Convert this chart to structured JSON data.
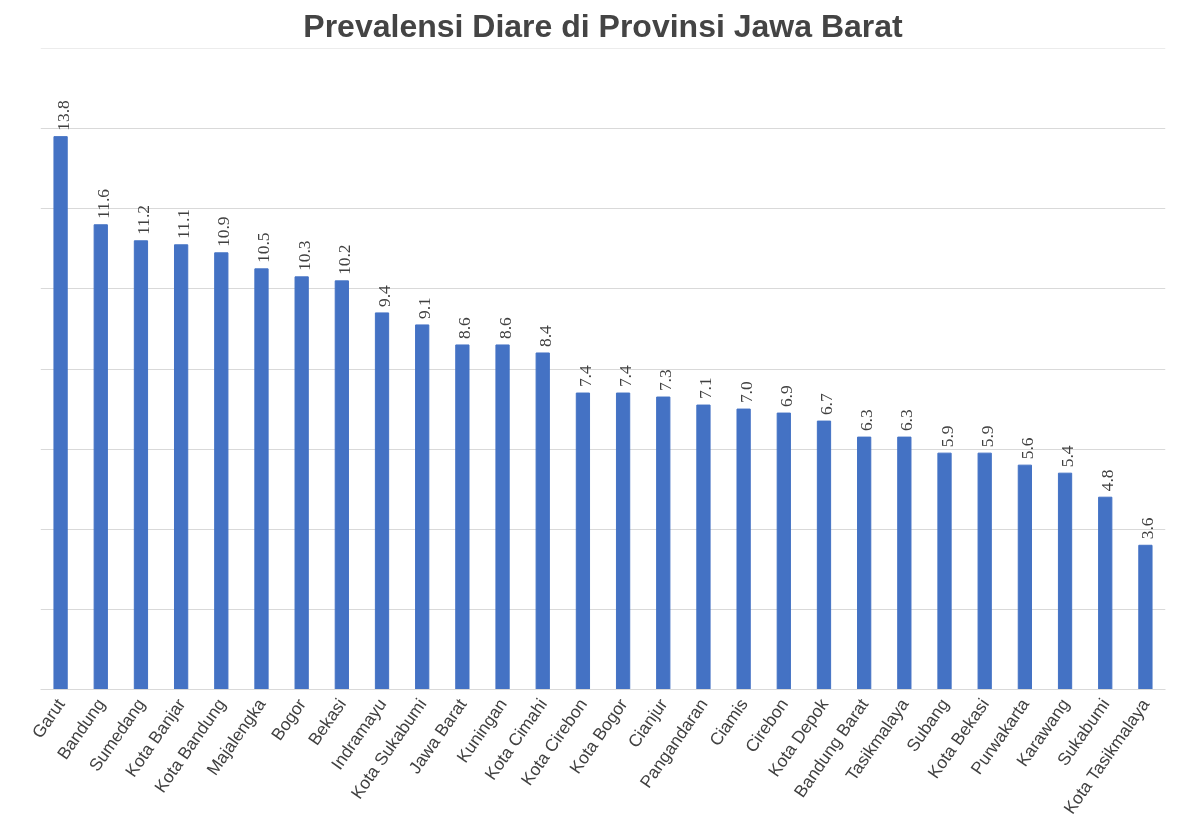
{
  "chart_data": {
    "type": "bar",
    "title": "Prevalensi Diare di Provinsi Jawa Barat",
    "categories": [
      "Garut",
      "Bandung",
      "Sumedang",
      "Kota Banjar",
      "Kota Bandung",
      "Majalengka",
      "Bogor",
      "Bekasi",
      "Indramayu",
      "Kota Sukabumi",
      "Jawa Barat",
      "Kuningan",
      "Kota Cimahi",
      "Kota Cirebon",
      "Kota Bogor",
      "Cianjur",
      "Pangandaran",
      "Ciamis",
      "Cirebon",
      "Kota Depok",
      "Bandung Barat",
      "Tasikmalaya",
      "Subang",
      "Kota Bekasi",
      "Purwakarta",
      "Karawang",
      "Sukabumi",
      "Kota Tasikmalaya"
    ],
    "values": [
      13.8,
      11.6,
      11.2,
      11.1,
      10.9,
      10.5,
      10.3,
      10.2,
      9.4,
      9.1,
      8.6,
      8.6,
      8.4,
      7.4,
      7.4,
      7.3,
      7.1,
      7.0,
      6.9,
      6.7,
      6.3,
      6.3,
      5.9,
      5.9,
      5.6,
      5.4,
      4.8,
      3.6
    ],
    "value_labels": [
      "13.8",
      "11.6",
      "11.2",
      "11.1",
      "10.9",
      "10.5",
      "10.3",
      "10.2",
      "9.4",
      "9.1",
      "8.6",
      "8.6",
      "8.4",
      "7.4",
      "7.4",
      "7.3",
      "7.1",
      "7.0",
      "6.9",
      "6.7",
      "6.3",
      "6.3",
      "5.9",
      "5.9",
      "5.6",
      "5.4",
      "4.8",
      "3.6"
    ],
    "color": "#4472c4",
    "ylim": [
      0,
      16
    ],
    "yticks": [
      {
        "value": 0,
        "label": null
      },
      {
        "value": 2,
        "label": null
      },
      {
        "value": 4,
        "label": null
      },
      {
        "value": 6,
        "label": null
      },
      {
        "value": 8,
        "label": null
      },
      {
        "value": 10,
        "label": null
      },
      {
        "value": 12,
        "label": null
      },
      {
        "value": 14,
        "label": null
      }
    ],
    "tick_labels": "x",
    "grid": "y",
    "legend": false
  }
}
